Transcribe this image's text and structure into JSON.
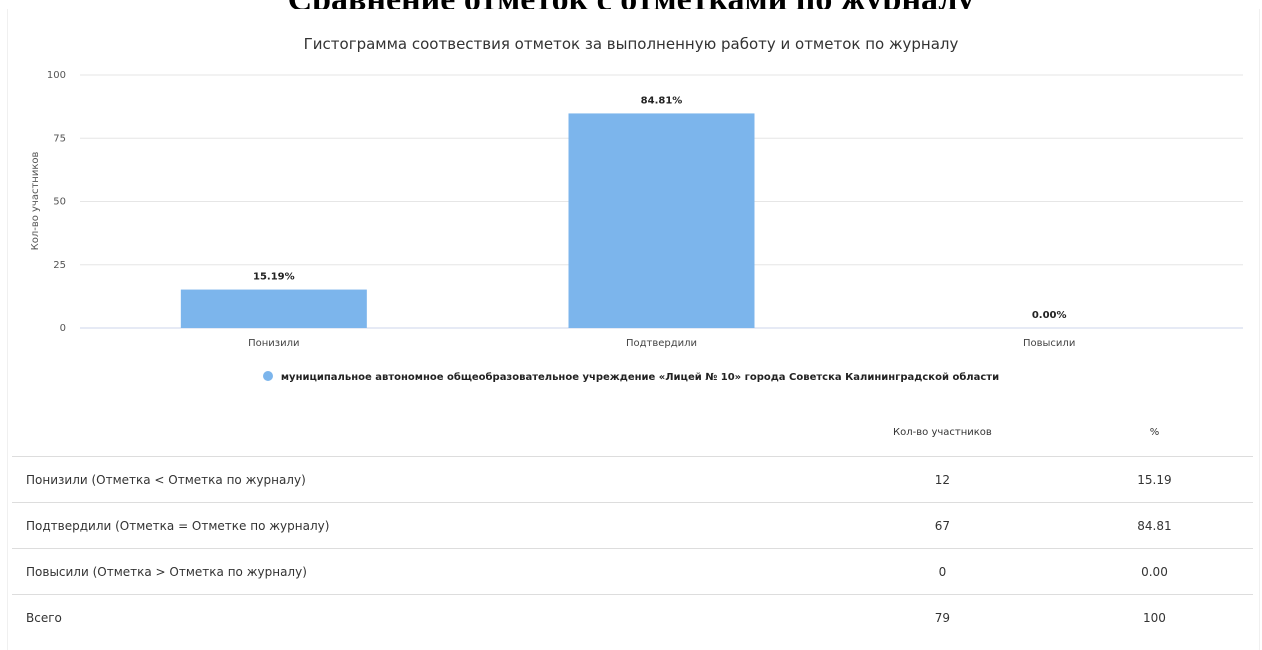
{
  "page": {
    "heading": "Сравнение отметок с отметками по журналу"
  },
  "chart_data": {
    "type": "bar",
    "title": "Гистограмма соотвествия отметок за выполненную работу и отметок по журналу",
    "categories": [
      "Понизили",
      "Подтвердили",
      "Повысили"
    ],
    "series": [
      {
        "name": "муниципальное автономное общеобразовательное учреждение «Лицей № 10» города Советска Калининградской области",
        "values": [
          15.19,
          84.81,
          0.0
        ],
        "labels": [
          "15.19%",
          "84.81%",
          "0.00%"
        ],
        "color": "#7cb5ec"
      }
    ],
    "ylabel": "Кол-во участников",
    "xlabel": "",
    "ylim": [
      0,
      100
    ],
    "yticks": [
      "0",
      "25",
      "50",
      "75",
      "100"
    ],
    "grid": true,
    "legend": "bottom-center"
  },
  "table": {
    "headers": [
      "",
      "Кол-во участников",
      "%"
    ],
    "rows": [
      [
        "Понизили (Отметка < Отметка по журналу)",
        "12",
        "15.19"
      ],
      [
        "Подтвердили (Отметка = Отметке по журналу)",
        "67",
        "84.81"
      ],
      [
        "Повысили (Отметка > Отметка по журналу)",
        "0",
        "0.00"
      ],
      [
        "Всего",
        "79",
        "100"
      ]
    ]
  }
}
